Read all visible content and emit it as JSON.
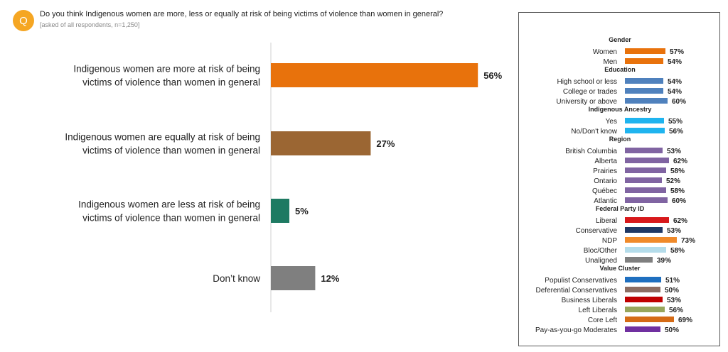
{
  "header": {
    "badge": "Q",
    "question": "Do you think Indigenous women are more, less or equally at risk of being victims of violence than women in general?",
    "subnote": "[asked of all respondents, n=1,250]"
  },
  "chart_data": [
    {
      "type": "bar",
      "orientation": "horizontal",
      "categories": [
        [
          "Indigenous women are more at risk of being",
          "victims of violence than women in general"
        ],
        [
          "Indigenous women are equally at risk of being",
          "victims of violence than women in general"
        ],
        [
          "Indigenous women are less at risk of being",
          "victims of violence than women in general"
        ],
        [
          "Don’t know"
        ]
      ],
      "values": [
        56,
        27,
        5,
        12
      ],
      "labels": [
        "56%",
        "27%",
        "5%",
        "12%"
      ],
      "colors": [
        "#e8720c",
        "#9b6633",
        "#1e7a62",
        "#7f7f7f"
      ],
      "xlim": [
        0,
        100
      ]
    },
    {
      "type": "bar",
      "orientation": "horizontal",
      "xlim": [
        0,
        100
      ],
      "groups": [
        {
          "title": "Gender",
          "items": [
            {
              "label": "Women",
              "value": 57,
              "text": "57%",
              "color": "#e8720c"
            },
            {
              "label": "Men",
              "value": 54,
              "text": "54%",
              "color": "#e8720c"
            }
          ]
        },
        {
          "title": "Education",
          "items": [
            {
              "label": "High school or less",
              "value": 54,
              "text": "54%",
              "color": "#4f81bd"
            },
            {
              "label": "College or trades",
              "value": 54,
              "text": "54%",
              "color": "#4f81bd"
            },
            {
              "label": "University or above",
              "value": 60,
              "text": "60%",
              "color": "#4f81bd"
            }
          ]
        },
        {
          "title": "Indigenous Ancestry",
          "items": [
            {
              "label": "Yes",
              "value": 55,
              "text": "55%",
              "color": "#1fb4ef"
            },
            {
              "label": "No/Don't know",
              "value": 56,
              "text": "56%",
              "color": "#1fb4ef"
            }
          ]
        },
        {
          "title": "Region",
          "items": [
            {
              "label": "British Columbia",
              "value": 53,
              "text": "53%",
              "color": "#8064a2"
            },
            {
              "label": "Alberta",
              "value": 62,
              "text": "62%",
              "color": "#8064a2"
            },
            {
              "label": "Prairies",
              "value": 58,
              "text": "58%",
              "color": "#8064a2"
            },
            {
              "label": "Ontario",
              "value": 52,
              "text": "52%",
              "color": "#8064a2"
            },
            {
              "label": "Québec",
              "value": 58,
              "text": "58%",
              "color": "#8064a2"
            },
            {
              "label": "Atlantic",
              "value": 60,
              "text": "60%",
              "color": "#8064a2"
            }
          ]
        },
        {
          "title": "Federal Party ID",
          "items": [
            {
              "label": "Liberal",
              "value": 62,
              "text": "62%",
              "color": "#d7191c"
            },
            {
              "label": "Conservative",
              "value": 53,
              "text": "53%",
              "color": "#1f3864"
            },
            {
              "label": "NDP",
              "value": 73,
              "text": "73%",
              "color": "#f08a2a"
            },
            {
              "label": "Bloc/Other",
              "value": 58,
              "text": "58%",
              "color": "#b4dcea"
            },
            {
              "label": "Unaligned",
              "value": 39,
              "text": "39%",
              "color": "#7f7f7f"
            }
          ]
        },
        {
          "title": "Value Cluster",
          "items": [
            {
              "label": "Populist Conservatives",
              "value": 51,
              "text": "51%",
              "color": "#1f6fbf"
            },
            {
              "label": "Deferential Conservatives",
              "value": 50,
              "text": "50%",
              "color": "#8c6d62"
            },
            {
              "label": "Business Liberals",
              "value": 53,
              "text": "53%",
              "color": "#c00000"
            },
            {
              "label": "Left Liberals",
              "value": 56,
              "text": "56%",
              "color": "#98a65c"
            },
            {
              "label": "Core Left",
              "value": 69,
              "text": "69%",
              "color": "#d56b16"
            },
            {
              "label": "Pay-as-you-go Moderates",
              "value": 50,
              "text": "50%",
              "color": "#7030a0"
            }
          ]
        }
      ]
    }
  ]
}
